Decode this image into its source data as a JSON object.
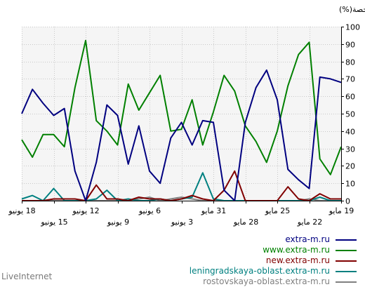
{
  "chart_data": {
    "type": "line",
    "ylabel": "الحصة(%)",
    "ylim": [
      0,
      100
    ],
    "yticks": [
      0,
      10,
      20,
      30,
      40,
      50,
      60,
      70,
      80,
      90,
      100
    ],
    "grid": true,
    "legend_position": "bottom-right",
    "x_direction": "right-to-left",
    "xticks": [
      {
        "label": "19 مايو",
        "row": 1
      },
      {
        "label": "22 مايو",
        "row": 2
      },
      {
        "label": "25 مايو",
        "row": 1
      },
      {
        "label": "28 مايو",
        "row": 2
      },
      {
        "label": "31 مايو",
        "row": 1
      },
      {
        "label": "3 يونيو",
        "row": 2
      },
      {
        "label": "6 يونيو",
        "row": 1
      },
      {
        "label": "9 يونيو",
        "row": 2
      },
      {
        "label": "12 يونيو",
        "row": 1
      },
      {
        "label": "15 يونيو",
        "row": 2
      },
      {
        "label": "18 يونيو",
        "row": 1
      }
    ],
    "series": [
      {
        "name": "extra-m.ru",
        "color": "#000080",
        "values": [
          68,
          70,
          71,
          7,
          12,
          18,
          58,
          75,
          65,
          45,
          0,
          6,
          45,
          46,
          32,
          45,
          36,
          10,
          17,
          43,
          21,
          49,
          55,
          22,
          0,
          17,
          53,
          49,
          56,
          64,
          50
        ]
      },
      {
        "name": "www.extra-m.ru",
        "color": "#008000",
        "values": [
          31,
          15,
          24,
          91,
          84,
          66,
          40,
          22,
          34,
          43,
          63,
          72,
          51,
          32,
          58,
          41,
          40,
          72,
          62,
          52,
          67,
          32,
          40,
          46,
          92,
          65,
          31,
          38,
          38,
          25,
          35
        ]
      },
      {
        "name": "new.extra-m.ru",
        "color": "#800000",
        "values": [
          1,
          1,
          4,
          0,
          1,
          8,
          0,
          0,
          0,
          0,
          17,
          6,
          0,
          1,
          3,
          1,
          0,
          1,
          1,
          2,
          0,
          1,
          1,
          9,
          0,
          1,
          1,
          1,
          0,
          0,
          0
        ]
      },
      {
        "name": "leningradskaya-oblast.extra-m.ru",
        "color": "#008080",
        "values": [
          0,
          0,
          2,
          0,
          0,
          0,
          0,
          0,
          0,
          0,
          0,
          0,
          1,
          16,
          2,
          1,
          0,
          1,
          0,
          0,
          1,
          0,
          6,
          1,
          0,
          0,
          0,
          7,
          0,
          3,
          1
        ]
      },
      {
        "name": "rostovskaya-oblast.extra-m.ru",
        "color": "#808080",
        "values": [
          0,
          0,
          0,
          1,
          0,
          0,
          0,
          0,
          0,
          0,
          0,
          0,
          0,
          0,
          1,
          2,
          1,
          0,
          2,
          1,
          0,
          0,
          0,
          0,
          0,
          0,
          0,
          0,
          0,
          0,
          0
        ]
      }
    ]
  },
  "footer": {
    "brand": "LiveInternet"
  }
}
